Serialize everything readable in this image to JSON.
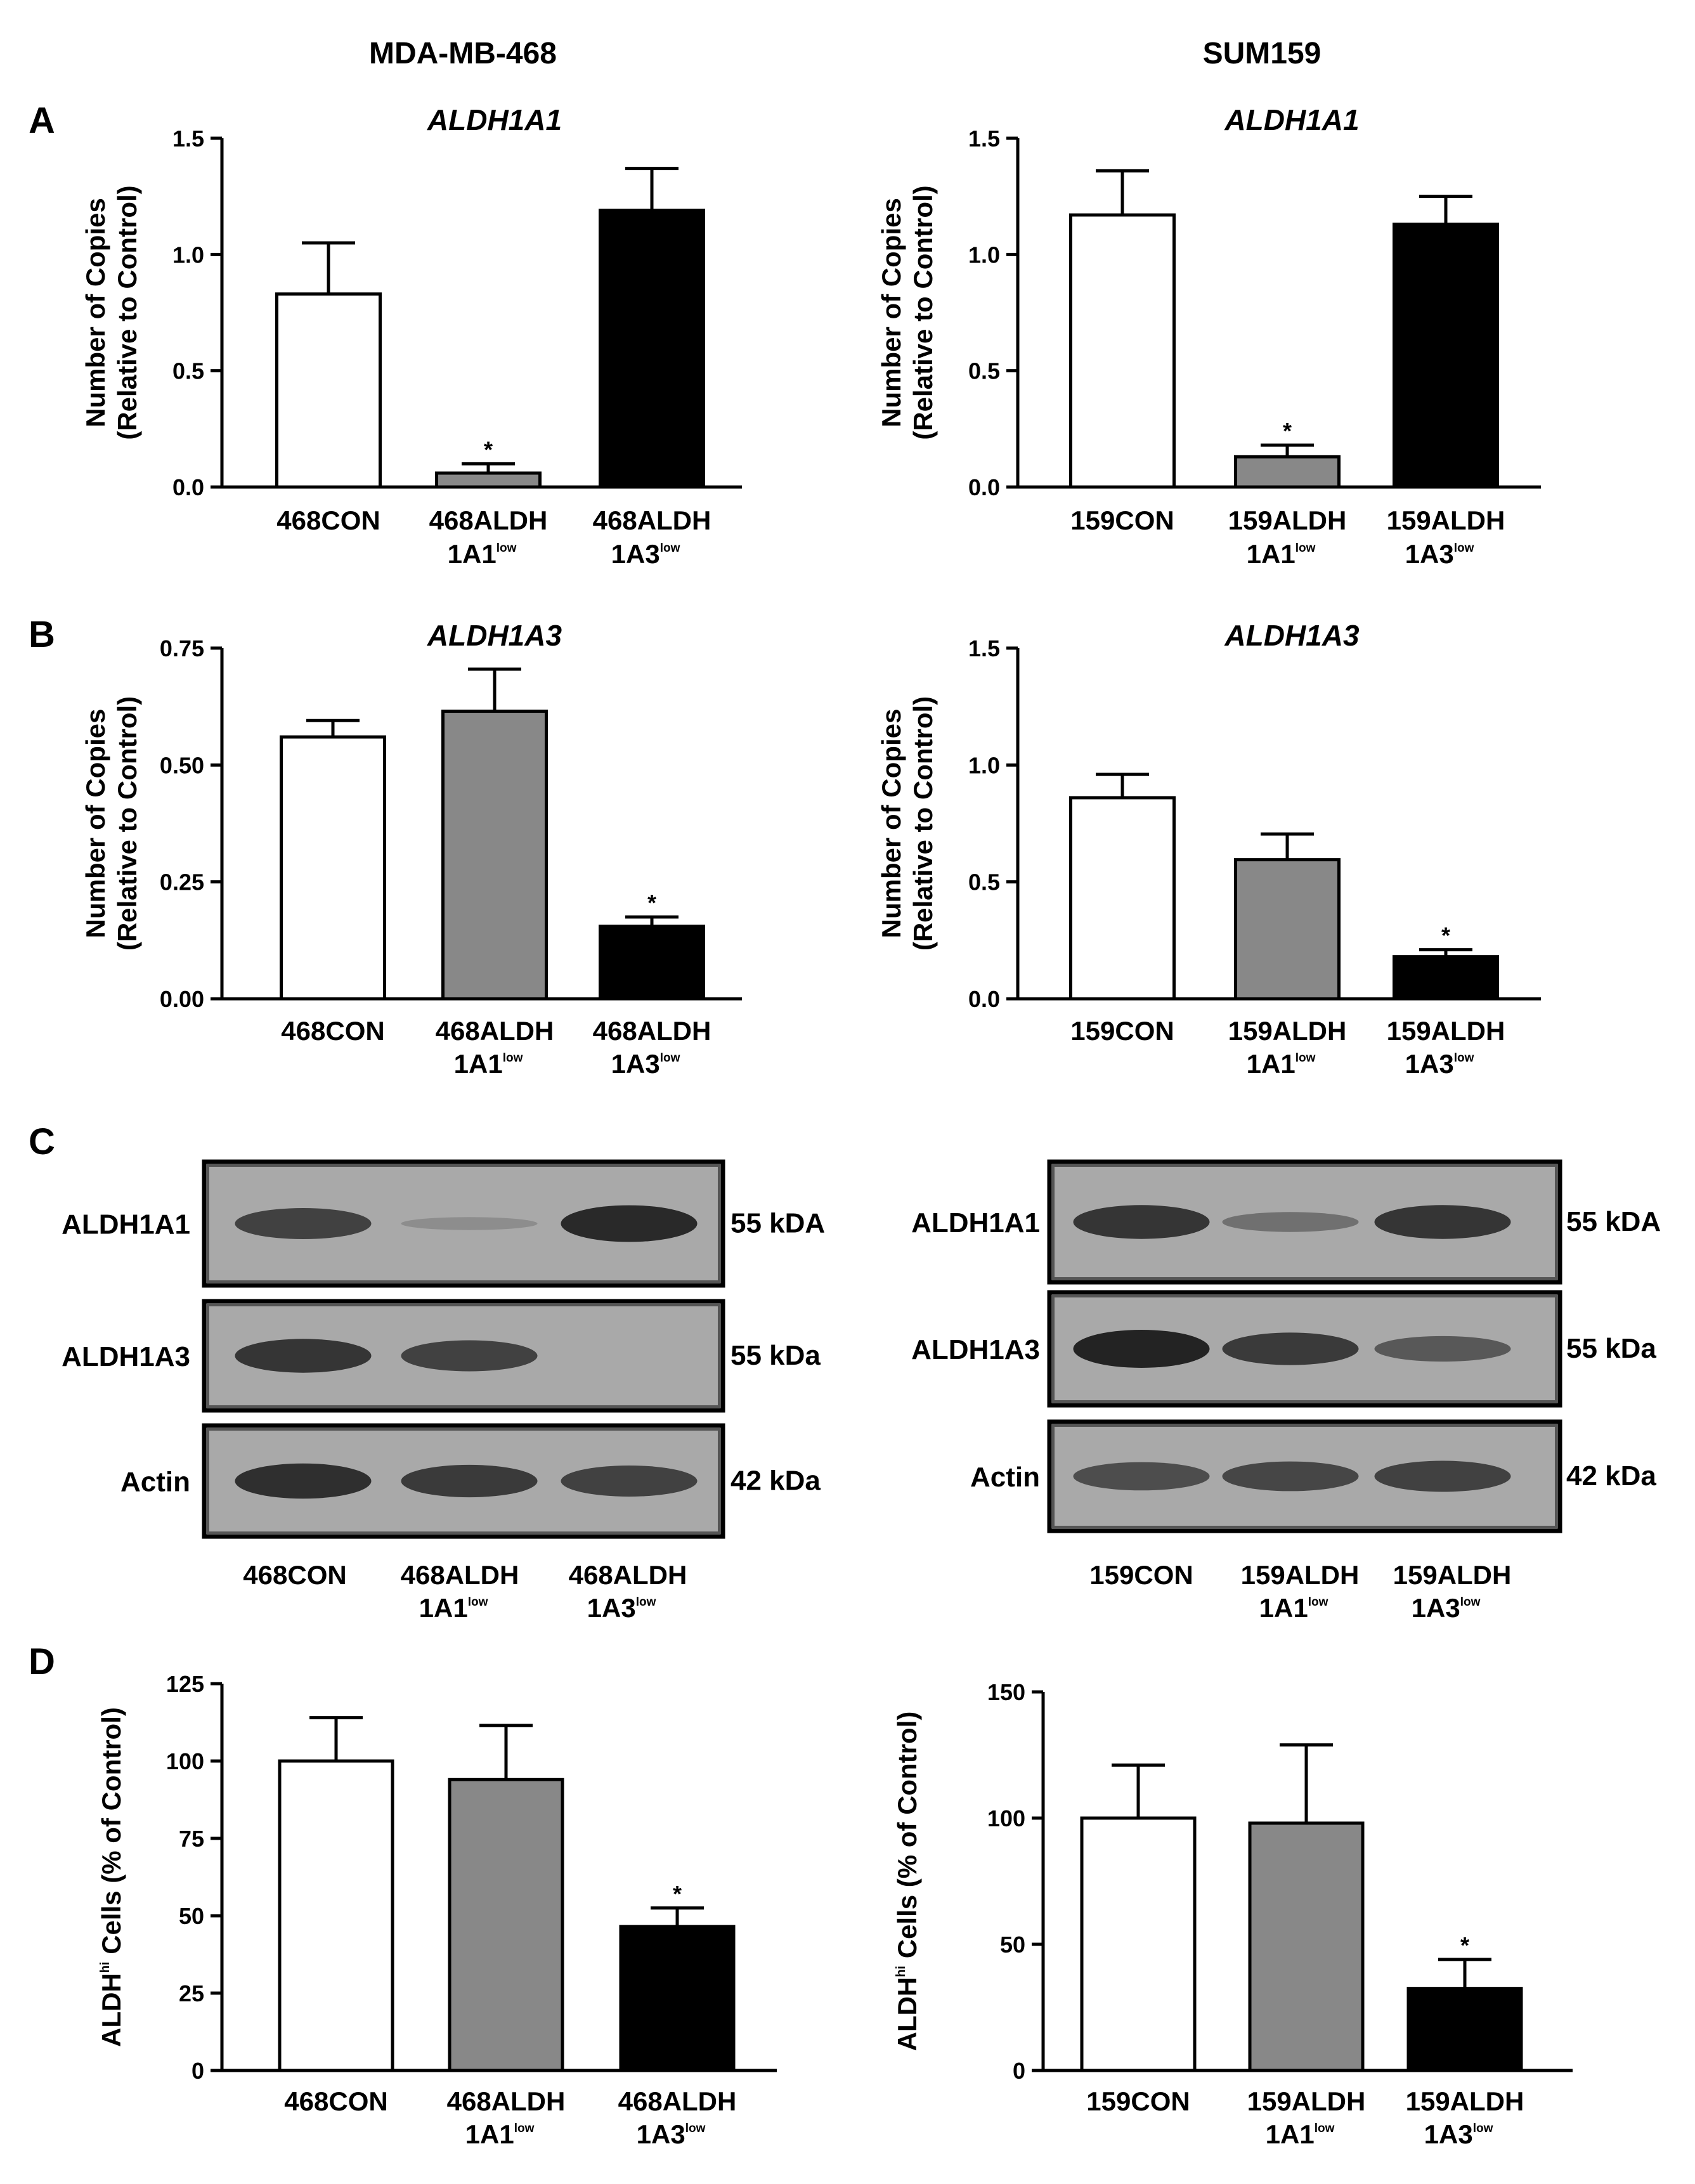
{
  "headers": {
    "left": "MDA-MB-468",
    "right": "SUM159"
  },
  "panel_letters": {
    "a": "A",
    "b": "B",
    "c": "C",
    "d": "D"
  },
  "colors": {
    "con": "#ffffff",
    "a1": "#888888",
    "a3": "#000000",
    "axis": "#000000"
  },
  "chart_data": [
    {
      "id": "a_left",
      "type": "bar",
      "title": "ALDH1A1",
      "ylabel": [
        "Number of Copies",
        "(Relative to Control)"
      ],
      "ylim": [
        0,
        1.5
      ],
      "yticks": [
        "0.0",
        "0.5",
        "1.0",
        "1.5"
      ],
      "categories": [
        [
          "468CON"
        ],
        [
          "468ALDH",
          "1A1",
          "low"
        ],
        [
          "468ALDH",
          "1A3",
          "low"
        ]
      ],
      "values": [
        0.83,
        0.06,
        1.19
      ],
      "errors": [
        0.22,
        0.04,
        0.18
      ],
      "significance": [
        "",
        "*",
        ""
      ]
    },
    {
      "id": "a_right",
      "type": "bar",
      "title": "ALDH1A1",
      "ylabel": [
        "Number of Copies",
        "(Relative to Control)"
      ],
      "ylim": [
        0,
        1.5
      ],
      "yticks": [
        "0.0",
        "0.5",
        "1.0",
        "1.5"
      ],
      "categories": [
        [
          "159CON"
        ],
        [
          "159ALDH",
          "1A1",
          "low"
        ],
        [
          "159ALDH",
          "1A3",
          "low"
        ]
      ],
      "values": [
        1.17,
        0.13,
        1.13
      ],
      "errors": [
        0.19,
        0.05,
        0.12
      ],
      "significance": [
        "",
        "*",
        ""
      ]
    },
    {
      "id": "b_left",
      "type": "bar",
      "title": "ALDH1A3",
      "ylabel": [
        "Number of Copies",
        "(Relative to Control)"
      ],
      "ylim": [
        0,
        0.75
      ],
      "yticks": [
        "0.00",
        "0.25",
        "0.50",
        "0.75"
      ],
      "categories": [
        [
          "468CON"
        ],
        [
          "468ALDH",
          "1A1",
          "low"
        ],
        [
          "468ALDH",
          "1A3",
          "low"
        ]
      ],
      "values": [
        0.56,
        0.615,
        0.155
      ],
      "errors": [
        0.035,
        0.09,
        0.02
      ],
      "significance": [
        "",
        "",
        "*"
      ]
    },
    {
      "id": "b_right",
      "type": "bar",
      "title": "ALDH1A3",
      "ylabel": [
        "Number of Copies",
        "(Relative to Control)"
      ],
      "ylim": [
        0,
        1.5
      ],
      "yticks": [
        "0.0",
        "0.5",
        "1.0",
        "1.5"
      ],
      "categories": [
        [
          "159CON"
        ],
        [
          "159ALDH",
          "1A1",
          "low"
        ],
        [
          "159ALDH",
          "1A3",
          "low"
        ]
      ],
      "values": [
        0.86,
        0.595,
        0.18
      ],
      "errors": [
        0.1,
        0.11,
        0.03
      ],
      "significance": [
        "",
        "",
        "*"
      ]
    },
    {
      "id": "d_left",
      "type": "bar",
      "title": "",
      "ylabel": [
        "ALDH",
        "hi",
        " Cells (% of Control)"
      ],
      "ylim": [
        0,
        125
      ],
      "yticks": [
        "0",
        "25",
        "50",
        "75",
        "100",
        "125"
      ],
      "categories": [
        [
          "468CON"
        ],
        [
          "468ALDH",
          "1A1",
          "low"
        ],
        [
          "468ALDH",
          "1A3",
          "low"
        ]
      ],
      "values": [
        100,
        94,
        46.5
      ],
      "errors": [
        14,
        17.5,
        6
      ],
      "significance": [
        "",
        "",
        "*"
      ]
    },
    {
      "id": "d_right",
      "type": "bar",
      "title": "",
      "ylabel": [
        "ALDH",
        "hi",
        " Cells (% of Control)"
      ],
      "ylim": [
        0,
        150
      ],
      "yticks": [
        "0",
        "50",
        "100",
        "150"
      ],
      "categories": [
        [
          "159CON"
        ],
        [
          "159ALDH",
          "1A1",
          "low"
        ],
        [
          "159ALDH",
          "1A3",
          "low"
        ]
      ],
      "values": [
        100,
        98,
        32.5
      ],
      "errors": [
        21,
        31,
        11.5
      ],
      "significance": [
        "",
        "",
        "*"
      ]
    }
  ],
  "western_blots": [
    {
      "id": "c_left",
      "categories": [
        [
          "468CON"
        ],
        [
          "468ALDH",
          "1A1",
          "low"
        ],
        [
          "468ALDH",
          "1A3",
          "low"
        ]
      ],
      "rows": [
        {
          "label": "ALDH1A1",
          "size": "55 kDA",
          "bands": [
            0.75,
            0.1,
            0.95
          ]
        },
        {
          "label": "ALDH1A3",
          "size": "55 kDa",
          "bands": [
            0.85,
            0.75,
            0.0
          ]
        },
        {
          "label": "Actin",
          "size": "42 kDa",
          "bands": [
            0.9,
            0.8,
            0.75
          ]
        }
      ]
    },
    {
      "id": "c_right",
      "categories": [
        [
          "159CON"
        ],
        [
          "159ALDH",
          "1A1",
          "low"
        ],
        [
          "159ALDH",
          "1A3",
          "low"
        ]
      ],
      "rows": [
        {
          "label": "ALDH1A1",
          "size": "55 kDA",
          "bands": [
            0.85,
            0.35,
            0.85
          ]
        },
        {
          "label": "ALDH1A3",
          "size": "55 kDa",
          "bands": [
            1.0,
            0.8,
            0.55
          ]
        },
        {
          "label": "Actin",
          "size": "42 kDa",
          "bands": [
            0.65,
            0.7,
            0.75
          ]
        }
      ]
    }
  ]
}
